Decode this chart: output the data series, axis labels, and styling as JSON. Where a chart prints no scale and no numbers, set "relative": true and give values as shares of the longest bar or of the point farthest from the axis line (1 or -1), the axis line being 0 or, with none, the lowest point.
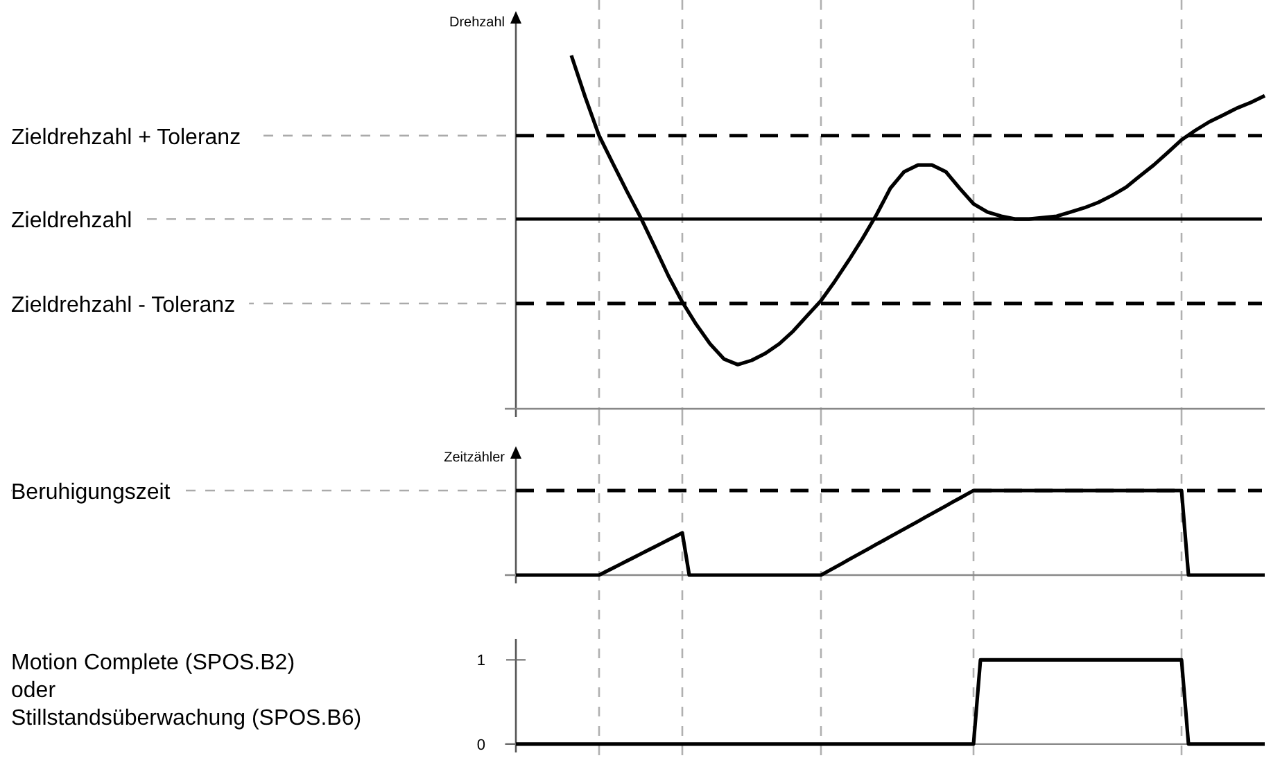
{
  "chart_data": [
    {
      "type": "line",
      "ylabel": "Drehzahl",
      "relative": true,
      "grid": "x",
      "tick_labels": false,
      "line_style": "solid",
      "marker": "none",
      "categories": [
        null,
        null,
        null,
        null,
        null,
        null,
        null,
        null,
        null,
        null,
        null,
        null,
        null,
        null,
        null,
        null,
        null,
        null,
        null,
        null,
        null,
        null,
        null,
        null,
        null,
        null,
        null,
        null,
        null,
        null,
        null,
        null,
        null,
        null,
        null,
        null,
        null,
        null,
        null,
        null,
        null,
        null,
        null,
        null,
        null,
        null,
        null,
        null,
        null,
        null,
        null,
        null,
        null,
        null,
        null
      ],
      "series": [
        {
          "color": "#000000",
          "values": [
            null,
            null,
            null,
            null,
            1.0,
            0.882,
            0.773,
            0.694,
            0.616,
            0.541,
            0.459,
            0.376,
            0.302,
            0.239,
            0.184,
            0.141,
            0.125,
            0.137,
            0.157,
            0.184,
            0.22,
            0.263,
            0.306,
            0.361,
            0.42,
            0.482,
            0.549,
            0.624,
            0.671,
            0.69,
            0.69,
            0.671,
            0.624,
            0.58,
            0.557,
            0.545,
            0.537,
            0.537,
            0.541,
            0.545,
            0.557,
            0.569,
            0.584,
            0.604,
            0.627,
            0.659,
            0.69,
            0.725,
            0.761,
            0.788,
            0.812,
            0.831,
            0.851,
            0.867,
            0.886
          ]
        }
      ],
      "ref_lines": [
        {
          "axis": "y",
          "value": 0.773,
          "label": "Zieldrehzahl + Toleranz",
          "color": "#000000",
          "line_style": "dashed"
        },
        {
          "axis": "y",
          "value": 0.537,
          "label": "Zieldrehzahl",
          "color": "#000000",
          "line_style": "solid"
        },
        {
          "axis": "y",
          "value": 0.298,
          "label": "Zieldrehzahl - Toleranz",
          "color": "#000000",
          "line_style": "dashed"
        }
      ]
    },
    {
      "type": "line",
      "ylabel": "Zeitzähler",
      "relative": true,
      "grid": "x",
      "tick_labels": false,
      "line_style": "solid",
      "marker": "none",
      "categories": [
        null,
        null,
        null,
        null,
        null,
        null,
        null,
        null,
        null,
        null,
        null,
        null,
        null,
        null,
        null,
        null,
        null,
        null,
        null,
        null,
        null,
        null,
        null,
        null,
        null,
        null,
        null,
        null,
        null,
        null,
        null,
        null,
        null,
        null,
        null,
        null,
        null,
        null,
        null,
        null,
        null,
        null,
        null,
        null,
        null,
        null,
        null,
        null,
        null,
        null,
        null,
        null,
        null,
        null,
        null,
        null,
        null,
        null,
        null,
        null,
        null,
        null,
        null,
        null,
        null,
        null,
        null,
        null,
        null,
        null,
        null,
        null,
        null,
        null,
        null,
        null,
        null,
        null,
        null,
        null,
        null,
        null,
        null,
        null,
        null,
        null,
        null,
        null,
        null,
        null,
        null,
        null,
        null,
        null,
        null,
        null,
        null,
        null,
        null,
        null,
        null,
        null,
        null,
        null,
        null,
        null,
        null,
        null,
        null
      ],
      "series": [
        {
          "color": "#000000",
          "values": [
            0,
            0,
            0,
            0,
            0,
            0,
            0,
            0,
            0,
            0,
            0,
            0,
            0,
            0.042,
            0.083,
            0.125,
            0.167,
            0.208,
            0.25,
            0.292,
            0.333,
            0.375,
            0.417,
            0.458,
            0.5,
            0,
            0,
            0,
            0,
            0,
            0,
            0,
            0,
            0,
            0,
            0,
            0,
            0,
            0,
            0,
            0,
            0,
            0,
            0,
            0,
            0.045,
            0.091,
            0.136,
            0.182,
            0.227,
            0.273,
            0.318,
            0.364,
            0.409,
            0.455,
            0.5,
            0.545,
            0.591,
            0.636,
            0.682,
            0.727,
            0.773,
            0.818,
            0.864,
            0.909,
            0.955,
            1,
            1,
            1,
            1,
            1,
            1,
            1,
            1,
            1,
            1,
            1,
            1,
            1,
            1,
            1,
            1,
            1,
            1,
            1,
            1,
            1,
            1,
            1,
            1,
            1,
            1,
            1,
            1,
            1,
            1,
            1,
            0,
            0,
            0,
            0,
            0,
            0,
            0,
            0,
            0,
            0,
            0,
            0
          ]
        }
      ],
      "ref_lines": [
        {
          "axis": "y",
          "value": 1,
          "label": "Beruhigungszeit",
          "color": "#000000",
          "line_style": "dashed"
        }
      ]
    },
    {
      "type": "line",
      "ylabel": "Motion Complete (SPOS.B2)\noder\nStillstandsüberwachung (SPOS.B6)",
      "ylim": [
        -0.1,
        1.25
      ],
      "grid": "x",
      "yticks": [
        0,
        1
      ],
      "tick_labels": "y",
      "line_style": "solid",
      "marker": "none",
      "categories": [
        null,
        null,
        null,
        null,
        null,
        null,
        null,
        null,
        null,
        null,
        null,
        null,
        null,
        null,
        null,
        null,
        null,
        null,
        null,
        null,
        null,
        null,
        null,
        null,
        null,
        null,
        null,
        null,
        null,
        null,
        null,
        null,
        null,
        null,
        null,
        null,
        null,
        null,
        null,
        null,
        null,
        null,
        null,
        null,
        null,
        null,
        null,
        null,
        null,
        null,
        null,
        null,
        null,
        null,
        null,
        null,
        null,
        null,
        null,
        null,
        null,
        null,
        null,
        null,
        null,
        null,
        null,
        null,
        null,
        null,
        null,
        null,
        null,
        null,
        null,
        null,
        null,
        null,
        null,
        null,
        null,
        null,
        null,
        null,
        null,
        null,
        null,
        null,
        null,
        null,
        null,
        null,
        null,
        null,
        null,
        null,
        null,
        null,
        null,
        null,
        null,
        null,
        null,
        null,
        null,
        null,
        null,
        null,
        null
      ],
      "series": [
        {
          "color": "#000000",
          "values": [
            0,
            0,
            0,
            0,
            0,
            0,
            0,
            0,
            0,
            0,
            0,
            0,
            0,
            0,
            0,
            0,
            0,
            0,
            0,
            0,
            0,
            0,
            0,
            0,
            0,
            0,
            0,
            0,
            0,
            0,
            0,
            0,
            0,
            0,
            0,
            0,
            0,
            0,
            0,
            0,
            0,
            0,
            0,
            0,
            0,
            0,
            0,
            0,
            0,
            0,
            0,
            0,
            0,
            0,
            0,
            0,
            0,
            0,
            0,
            0,
            0,
            0,
            0,
            0,
            0,
            0,
            0,
            1,
            1,
            1,
            1,
            1,
            1,
            1,
            1,
            1,
            1,
            1,
            1,
            1,
            1,
            1,
            1,
            1,
            1,
            1,
            1,
            1,
            1,
            1,
            1,
            1,
            1,
            1,
            1,
            1,
            1,
            0,
            0,
            0,
            0,
            0,
            0,
            0,
            0,
            0,
            0,
            0,
            0
          ]
        }
      ]
    }
  ]
}
